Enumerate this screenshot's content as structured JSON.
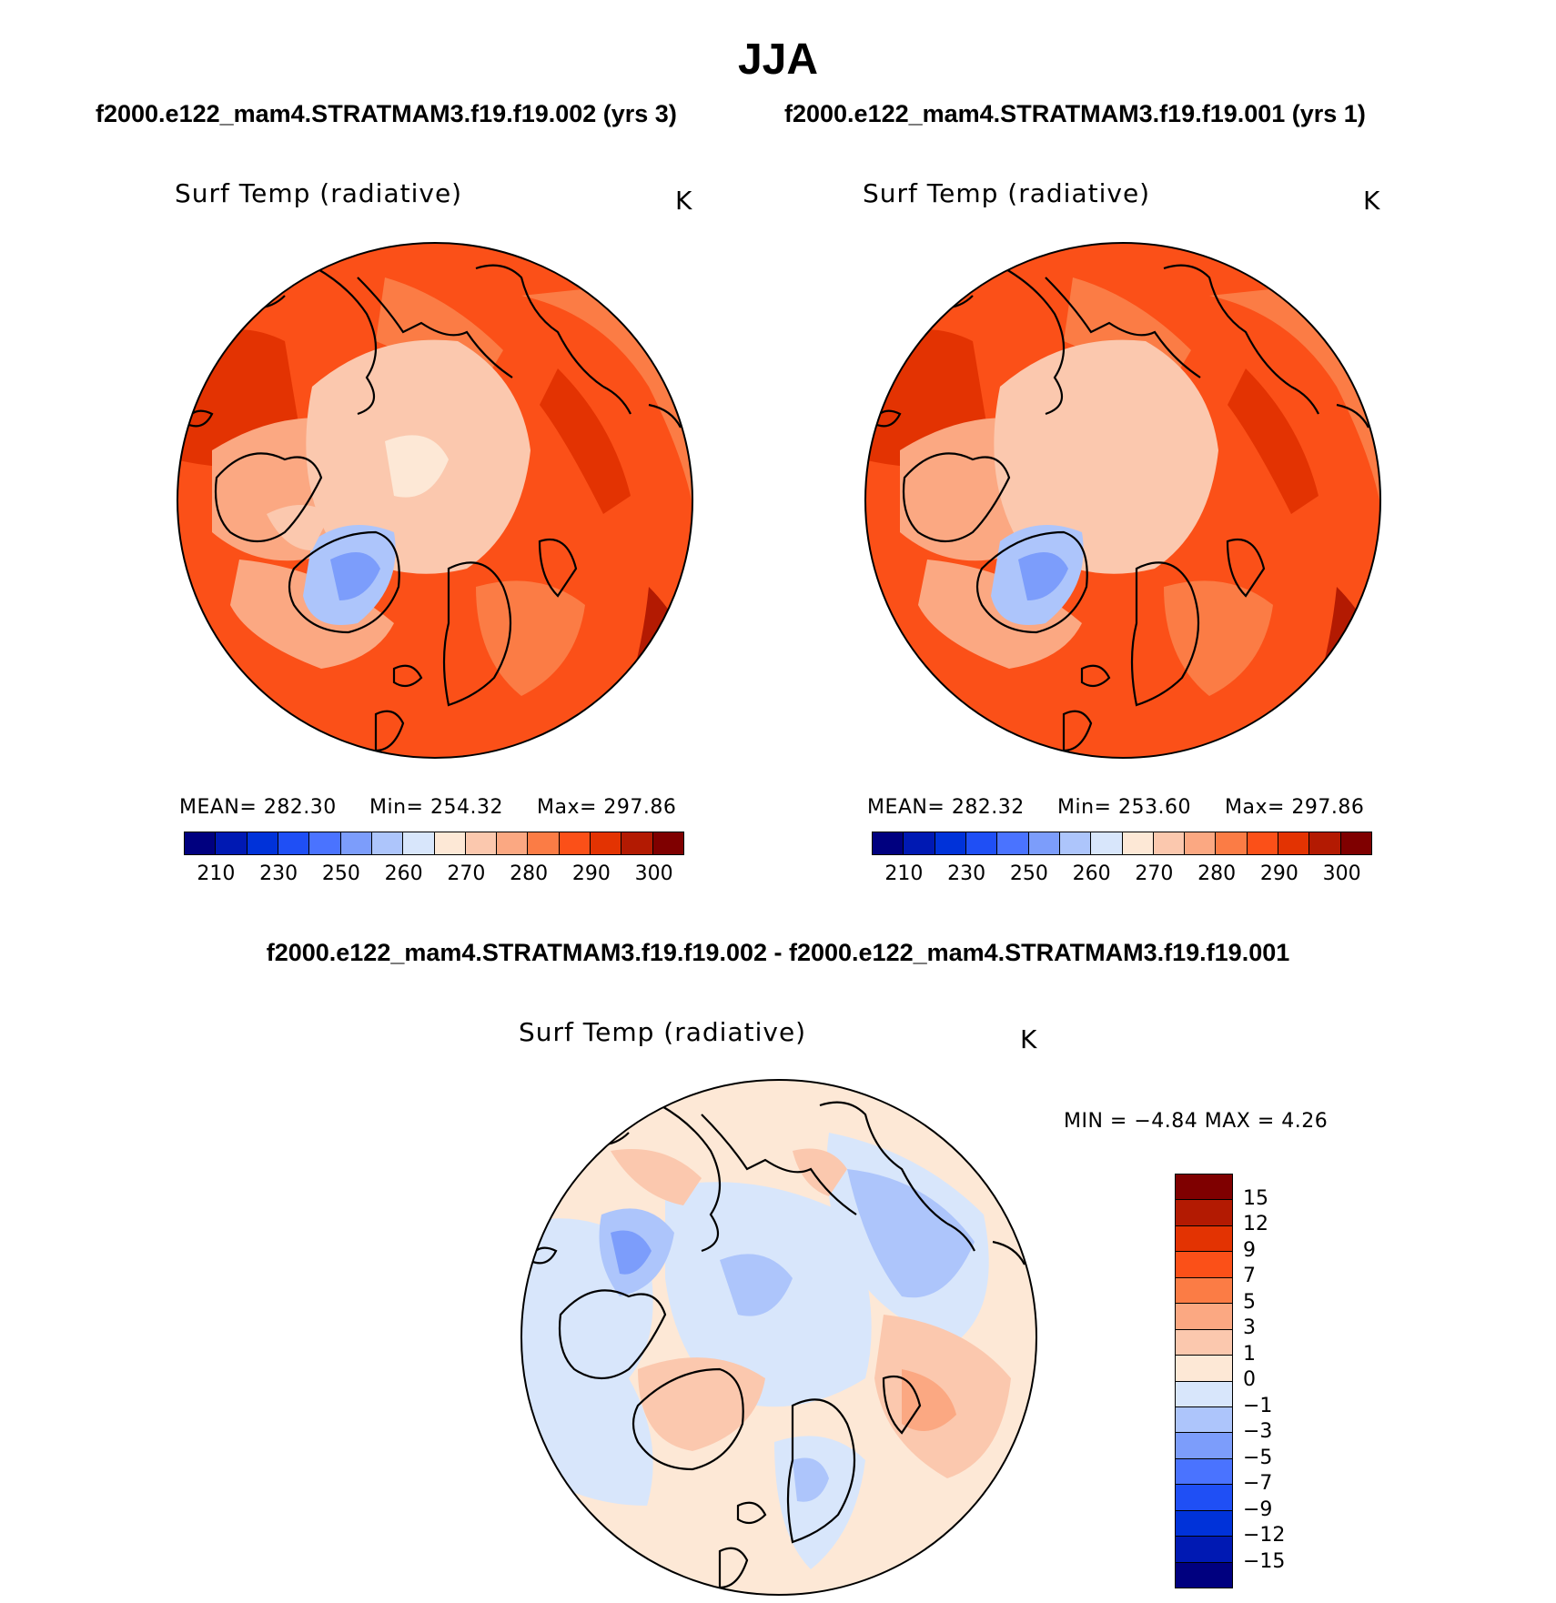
{
  "season": "JJA",
  "panels": [
    {
      "case": "f2000.e122_mam4.STRATMAM3.f19.f19.002 (yrs 3)",
      "variable": "Surf Temp (radiative)",
      "units": "K",
      "mean": "MEAN=  282.30",
      "min": "Min=  254.32",
      "max": "Max=  297.86"
    },
    {
      "case": "f2000.e122_mam4.STRATMAM3.f19.f19.001 (yrs 1)",
      "variable": "Surf Temp (radiative)",
      "units": "K",
      "mean": "MEAN=  282.32",
      "min": "Min=  253.60",
      "max": "Max=  297.86"
    }
  ],
  "abs_colorbar": {
    "colors": [
      "#00007f",
      "#0019b3",
      "#0032d9",
      "#1f4ff5",
      "#4a73ff",
      "#7c9dfb",
      "#adc5fb",
      "#d8e6fb",
      "#fde8d6",
      "#fbc8ae",
      "#fba882",
      "#fb7c45",
      "#fb5018",
      "#e33302",
      "#b31a02",
      "#7f0000"
    ],
    "ticks": [
      "210",
      "230",
      "250",
      "260",
      "270",
      "280",
      "290",
      "300"
    ]
  },
  "diff": {
    "title": "f2000.e122_mam4.STRATMAM3.f19.f19.002 - f2000.e122_mam4.STRATMAM3.f19.f19.001",
    "variable": "Surf Temp (radiative)",
    "units": "K",
    "minmax": "MIN =    −4.84  MAX =      4.26",
    "colorbar": {
      "colors": [
        "#7f0000",
        "#b31a02",
        "#e33302",
        "#fb5018",
        "#fb7c45",
        "#fba882",
        "#fbc8ae",
        "#fde8d6",
        "#d8e6fb",
        "#adc5fb",
        "#7c9dfb",
        "#4a73ff",
        "#1f4ff5",
        "#0032d9",
        "#0019b3",
        "#00007f"
      ],
      "ticks": [
        "15",
        "12",
        "9",
        "7",
        "5",
        "3",
        "1",
        "0",
        "−1",
        "−3",
        "−5",
        "−7",
        "−9",
        "−12",
        "−15"
      ]
    }
  }
}
